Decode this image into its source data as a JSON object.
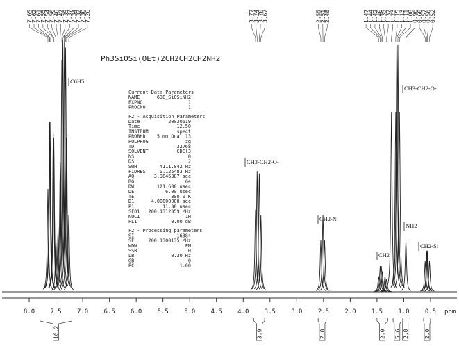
{
  "chart_data": {
    "type": "nmr",
    "title": "Ph3SiOSi(OEt)2CH2CH2CH2NH2",
    "xlabel": "ppm",
    "xlim": [
      8.5,
      0.0
    ],
    "xticks": [
      {
        "value": 8,
        "label": "8.0"
      },
      7.5,
      {
        "value": 7,
        "label": "7.0"
      },
      6.5,
      {
        "value": 6,
        "label": "6.0"
      },
      5.5,
      {
        "value": 5,
        "label": "5.0"
      },
      4.5,
      {
        "value": 4,
        "label": "4.0"
      },
      3.5,
      {
        "value": 3,
        "label": "3.0"
      },
      2.5,
      {
        "value": 2,
        "label": "2.0"
      },
      1.5,
      {
        "value": 1,
        "label": "1.0"
      },
      0.5
    ],
    "color": "#222222",
    "peaks": {
      "x": [
        7.65,
        7.62,
        7.61,
        7.55,
        7.54,
        7.5,
        7.46,
        7.42,
        7.39,
        7.37,
        7.34,
        7.32,
        7.3,
        7.26,
        3.77,
        3.74,
        3.7,
        3.67,
        2.55,
        2.51,
        2.48,
        1.47,
        1.44,
        1.42,
        1.4,
        1.35,
        1.32,
        1.23,
        1.15,
        1.13,
        1.11,
        1.08,
        0.96,
        0.6,
        0.57,
        0.56,
        0.52
      ],
      "labels": [
        {
          "value": 7.65,
          "label": "7.65"
        },
        {
          "value": 7.62,
          "label": "7.62"
        },
        {
          "value": 7.61,
          "label": "7.61"
        },
        {
          "value": 7.55,
          "label": "7.55"
        },
        {
          "value": 7.54,
          "label": "7.54"
        },
        {
          "value": 7.5,
          "label": "7.50"
        },
        {
          "value": 7.46,
          "label": "7.46"
        },
        {
          "value": 7.42,
          "label": "7.42"
        },
        {
          "value": 7.39,
          "label": "7.39"
        },
        {
          "value": 7.37,
          "label": "7.37"
        },
        {
          "value": 7.34,
          "label": "7.34"
        },
        {
          "value": 7.32,
          "label": "7.32"
        },
        {
          "value": 7.3,
          "label": "7.30"
        },
        {
          "value": 7.26,
          "label": "7.26"
        },
        {
          "value": 3.77,
          "label": "3.77"
        },
        {
          "value": 3.74,
          "label": "3.74"
        },
        {
          "value": 3.7,
          "label": "3.70"
        },
        {
          "value": 3.67,
          "label": "3.67"
        },
        {
          "value": 2.55,
          "label": "2.55"
        },
        {
          "value": 2.51,
          "label": "2.51"
        },
        {
          "value": 2.48,
          "label": "2.48"
        },
        {
          "value": 1.47,
          "label": "1.47"
        },
        {
          "value": 1.44,
          "label": "1.44"
        },
        {
          "value": 1.42,
          "label": "1.42"
        },
        {
          "value": 1.4,
          "label": "1.40"
        },
        {
          "value": 1.35,
          "label": "1.35"
        },
        {
          "value": 1.32,
          "label": "1.32"
        },
        {
          "value": 1.23,
          "label": "1.23"
        },
        {
          "value": 1.15,
          "label": "1.15"
        },
        {
          "value": 1.13,
          "label": "1.13"
        },
        {
          "value": 1.11,
          "label": "1.11"
        },
        {
          "value": 1.08,
          "label": "1.08"
        },
        {
          "value": 0.96,
          "label": "0.96"
        },
        {
          "value": 0.6,
          "label": "0.60"
        },
        {
          "value": 0.57,
          "label": "0.57"
        },
        {
          "value": 0.56,
          "label": "0.56"
        },
        {
          "value": 0.52,
          "label": "0.52"
        }
      ],
      "values": [
        40,
        66,
        66,
        62,
        60,
        20,
        25,
        50,
        90,
        98,
        100,
        95,
        60,
        30,
        32,
        47,
        46,
        30,
        20,
        30,
        20,
        6,
        10,
        10,
        8,
        6,
        5,
        70,
        70,
        96,
        96,
        70,
        20,
        12,
        16,
        16,
        12
      ]
    },
    "integrals": {
      "x": [
        [
          7.8,
          7.2
        ],
        [
          3.8,
          3.6
        ],
        [
          2.6,
          2.45
        ],
        [
          1.5,
          1.3
        ],
        [
          1.2,
          1.05
        ],
        [
          1.02,
          0.92
        ],
        [
          0.63,
          0.5
        ]
      ],
      "values": [
        16.2,
        3.9,
        2,
        2,
        5.6,
        2,
        2
      ],
      "value_labels": [
        "16.2",
        "3.9",
        "2.0",
        "2.0",
        "5.6",
        "2.0",
        "2.0"
      ]
    },
    "annotations": [
      "C6H5",
      "CH3-CH2-O-",
      "CH2-N",
      "CH2",
      "NH2",
      "CH2-Si",
      "CH3-CH2-O-"
    ],
    "parameter_blocks": [
      {
        "heading": "Current Data Parameters",
        "rows": [
          [
            "NAME",
            "638_SiOSiNH2"
          ],
          [
            "EXPNO",
            "1"
          ],
          [
            "PROCNO",
            "1"
          ]
        ]
      },
      {
        "heading": "F2 - Acquisition Parameters",
        "rows": [
          [
            "Date_",
            "20030619"
          ],
          [
            "Time",
            "12.50"
          ],
          [
            "INSTRUM",
            "spect"
          ],
          [
            "PROBHD",
            "5 mm Dual 13"
          ],
          [
            "PULPROG",
            "zg"
          ],
          [
            "TD",
            "32768"
          ],
          [
            "SOLVENT",
            "CDCl3"
          ],
          [
            "NS",
            "8"
          ],
          [
            "DS",
            "2"
          ],
          [
            "SWH",
            "4111.842 Hz"
          ],
          [
            "FIDRES",
            "0.125483 Hz"
          ],
          [
            "AQ",
            "3.9846387 sec"
          ],
          [
            "RG",
            "64"
          ],
          [
            "DW",
            "121.600 usec"
          ],
          [
            "DE",
            "6.00 usec"
          ],
          [
            "TE",
            "300.0 K"
          ],
          [
            "D1",
            "4.00000000 sec"
          ],
          [
            "P1",
            "11.30 usec"
          ],
          [
            "SFO1",
            "200.1312359 MHz"
          ],
          [
            "NUC1",
            "1H"
          ],
          [
            "PL1",
            "0.00 dB"
          ]
        ]
      },
      {
        "heading": "F2 - Processing parameters",
        "rows": [
          [
            "SI",
            "16384"
          ],
          [
            "SF",
            "200.1300135 MHz"
          ],
          [
            "WDW",
            "EM"
          ],
          [
            "SSB",
            "0"
          ],
          [
            "LB",
            "0.30 Hz"
          ],
          [
            "GB",
            "0"
          ],
          [
            "PC",
            "1.00"
          ]
        ]
      }
    ]
  }
}
